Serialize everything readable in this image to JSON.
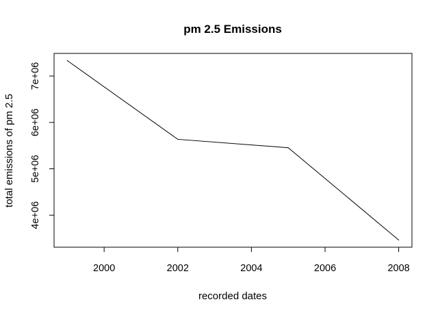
{
  "chart_data": {
    "type": "line",
    "title": "pm 2.5 Emissions",
    "xlabel": "recorded dates",
    "ylabel": "total emissions of pm 2.5",
    "x": [
      1999,
      2002,
      2005,
      2008
    ],
    "series": [
      {
        "values": [
          7332967,
          5635780,
          5454703,
          3464206
        ]
      }
    ],
    "xlim": [
      1998.64,
      2008.36
    ],
    "ylim": [
      3309177,
      7487996
    ],
    "x_ticks": [
      2000,
      2002,
      2004,
      2006,
      2008
    ],
    "x_tick_labels": [
      "2000",
      "2002",
      "2004",
      "2006",
      "2008"
    ],
    "y_ticks": [
      4000000,
      5000000,
      6000000,
      7000000
    ],
    "y_tick_labels": [
      "4e+06",
      "5e+06",
      "6e+06",
      "7e+06"
    ],
    "grid": false,
    "line_color": "#000000"
  }
}
